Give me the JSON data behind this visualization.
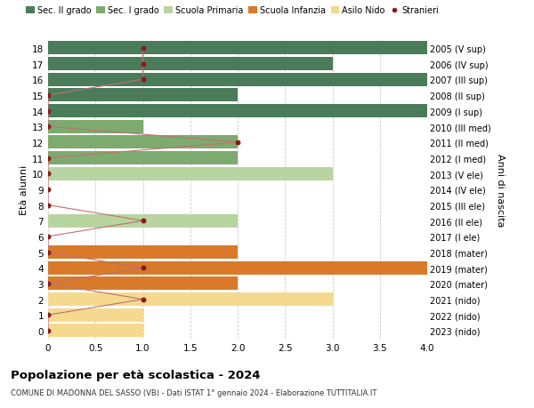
{
  "ages": [
    18,
    17,
    16,
    15,
    14,
    13,
    12,
    11,
    10,
    9,
    8,
    7,
    6,
    5,
    4,
    3,
    2,
    1,
    0
  ],
  "right_labels": [
    "2005 (V sup)",
    "2006 (IV sup)",
    "2007 (III sup)",
    "2008 (II sup)",
    "2009 (I sup)",
    "2010 (III med)",
    "2011 (II med)",
    "2012 (I med)",
    "2013 (V ele)",
    "2014 (IV ele)",
    "2015 (III ele)",
    "2016 (II ele)",
    "2017 (I ele)",
    "2018 (mater)",
    "2019 (mater)",
    "2020 (mater)",
    "2021 (nido)",
    "2022 (nido)",
    "2023 (nido)"
  ],
  "bar_values": [
    4.0,
    3.0,
    4.0,
    2.0,
    4.0,
    1.0,
    2.0,
    2.0,
    3.0,
    0.0,
    0.0,
    2.0,
    0.0,
    2.0,
    4.0,
    2.0,
    3.0,
    1.0,
    1.0
  ],
  "bar_colors": [
    "#4a7c59",
    "#4a7c59",
    "#4a7c59",
    "#4a7c59",
    "#4a7c59",
    "#7daa6e",
    "#7daa6e",
    "#7daa6e",
    "#b8d4a0",
    "#b8d4a0",
    "#b8d4a0",
    "#b8d4a0",
    "#b8d4a0",
    "#d97a2a",
    "#d97a2a",
    "#d97a2a",
    "#f5d98e",
    "#f5d98e",
    "#f5d98e"
  ],
  "stranieri_x": [
    1.0,
    1.0,
    1.0,
    0.0,
    0.0,
    0.0,
    2.0,
    0.0,
    0.0,
    0.0,
    0.0,
    1.0,
    0.0,
    0.0,
    1.0,
    0.0,
    1.0,
    0.0,
    0.0
  ],
  "legend_labels": [
    "Sec. II grado",
    "Sec. I grado",
    "Scuola Primaria",
    "Scuola Infanzia",
    "Asilo Nido",
    "Stranieri"
  ],
  "legend_colors": [
    "#4a7c59",
    "#7daa6e",
    "#b8d4a0",
    "#d97a2a",
    "#f5d98e",
    "#8b1a1a"
  ],
  "title": "Popolazione per età scolastica - 2024",
  "subtitle": "COMUNE DI MADONNA DEL SASSO (VB) - Dati ISTAT 1° gennaio 2024 - Elaborazione TUTTITALIA.IT",
  "ylabel_left": "Età alunni",
  "ylabel_right": "Anni di nascita",
  "xlim": [
    0,
    4.0
  ],
  "bg_color": "#ffffff",
  "bar_height": 0.85,
  "grid_color": "#cccccc",
  "stranieri_color": "#8b1a1a",
  "stranieri_line_color": "#c07070"
}
